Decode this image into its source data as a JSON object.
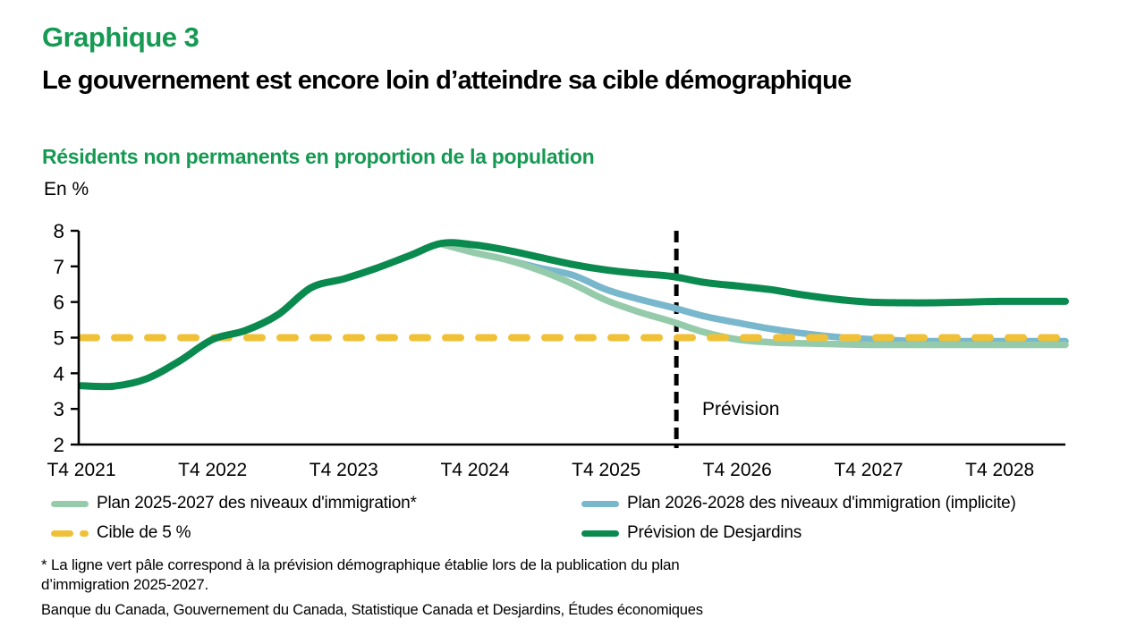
{
  "page": {
    "title": "Graphique 3",
    "subtitle": "Le gouvernement est encore loin d’atteindre sa cible démographique",
    "chart_title": "Résidents non permanents en proportion de la population",
    "unit_label": "En %",
    "forecast_label": "Prévision",
    "footnote_line1": "* La ligne vert pâle correspond à la prévision démographique établie lors de la publication du plan",
    "footnote_line2": "d’immigration 2025-2027.",
    "source": "Banque du Canada, Gouvernement du Canada, Statistique Canada et Desjardins, Études économiques"
  },
  "colors": {
    "title_green": "#169a53",
    "desjardins_green": "#0a8a4e",
    "plan_2025_2027_green": "#95cbaa",
    "plan_2026_2028_blue": "#79b7cd",
    "target_yellow": "#f0c137",
    "axis_black": "#000000"
  },
  "legend": {
    "items": [
      {
        "label": "Plan 2025-2027 des niveaux d'immigration*",
        "style": "solid"
      },
      {
        "label": "Plan 2026-2028 des niveaux d'immigration (implicite)",
        "style": "solid"
      },
      {
        "label": "Cible de 5 %",
        "style": "dashed"
      },
      {
        "label": "Prévision de Desjardins",
        "style": "solid"
      }
    ]
  },
  "chart_data": {
    "type": "line",
    "title": "Résidents non permanents en proportion de la population",
    "ylabel": "En %",
    "ylim": [
      2,
      8
    ],
    "y_ticks": [
      8,
      7,
      6,
      5,
      4,
      3,
      2
    ],
    "x_tick_labels": [
      "T4 2021",
      "T4 2022",
      "T4 2023",
      "T4 2024",
      "T4 2025",
      "T4 2026",
      "T4 2027",
      "T4 2028"
    ],
    "x_unit": "quarters, T4 2021 = 0",
    "total_quarters": 30,
    "quarters_per_tick": 4,
    "grid": false,
    "legend_position": "bottom",
    "forecast_divider_quarter": 18.14,
    "forecast_label": "Prévision",
    "draw_order": [
      1,
      0,
      2,
      3
    ],
    "series": [
      {
        "name": "Plan 2025-2027 des niveaux d'immigration*",
        "color": "#95cbaa",
        "style": "solid",
        "start_quarter": 11,
        "values": [
          7.62,
          7.38,
          7.18,
          6.88,
          6.5,
          6.05,
          5.72,
          5.45,
          5.15,
          4.95,
          4.87,
          4.84,
          4.82,
          4.8,
          4.8,
          4.8,
          4.8,
          4.8,
          4.8,
          4.8
        ]
      },
      {
        "name": "Plan 2026-2028 des niveaux d'immigration (implicite)",
        "color": "#79b7cd",
        "style": "solid",
        "start_quarter": 13,
        "values": [
          7.18,
          6.95,
          6.75,
          6.35,
          6.08,
          5.85,
          5.6,
          5.42,
          5.25,
          5.12,
          5.02,
          4.96,
          4.92,
          4.9,
          4.9,
          4.9,
          4.9,
          4.9
        ]
      },
      {
        "name": "Cible de 5 %",
        "color": "#f0c137",
        "style": "dashed",
        "constant": 5.0
      },
      {
        "name": "Prévision de Desjardins",
        "color": "#0a8a4e",
        "style": "solid",
        "start_quarter": 0,
        "values": [
          3.65,
          3.64,
          3.85,
          4.35,
          4.95,
          5.2,
          5.65,
          6.4,
          6.65,
          6.95,
          7.3,
          7.65,
          7.6,
          7.45,
          7.25,
          7.05,
          6.9,
          6.8,
          6.72,
          6.55,
          6.45,
          6.35,
          6.2,
          6.08,
          6.0,
          5.98,
          5.98,
          6.0,
          6.02,
          6.02,
          6.02
        ]
      }
    ]
  }
}
